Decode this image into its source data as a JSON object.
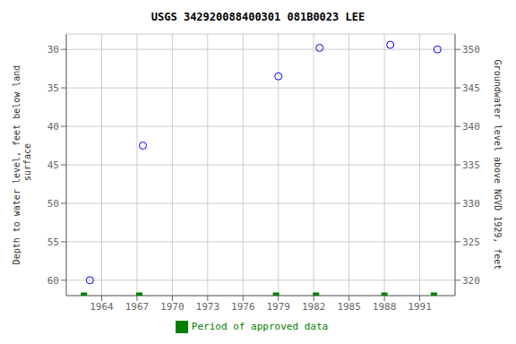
{
  "chart_data": {
    "type": "scatter",
    "title": "USGS 342920088400301 081B0023  LEE",
    "ylabel": "Depth to water level, feet below land\n surface",
    "y2label": "Groundwater level above NGVD 1929, feet",
    "x": [
      1963.0,
      1967.5,
      1979.0,
      1982.5,
      1988.5,
      1992.5
    ],
    "series": [
      {
        "color": "#0000ff",
        "marker": "circle",
        "values": [
          60.0,
          42.5,
          33.5,
          29.8,
          29.4,
          30.0
        ]
      },
      {
        "name": "Period of approved data",
        "color": "#008000",
        "marker": "square",
        "x": [
          1962.5,
          1967.2,
          1978.8,
          1982.2,
          1988.0,
          1992.2
        ]
      }
    ],
    "xlim": [
      1961,
      1994
    ],
    "xticks": [
      1964,
      1967,
      1970,
      1973,
      1976,
      1979,
      1982,
      1985,
      1988,
      1991
    ],
    "ylim": [
      62,
      28
    ],
    "yticks": [
      30,
      35,
      40,
      45,
      50,
      55,
      60
    ],
    "y2lim": [
      318,
      352
    ],
    "y2ticks": [
      350,
      345,
      340,
      335,
      330,
      325,
      320
    ],
    "grid": true,
    "legend": "bottom"
  }
}
